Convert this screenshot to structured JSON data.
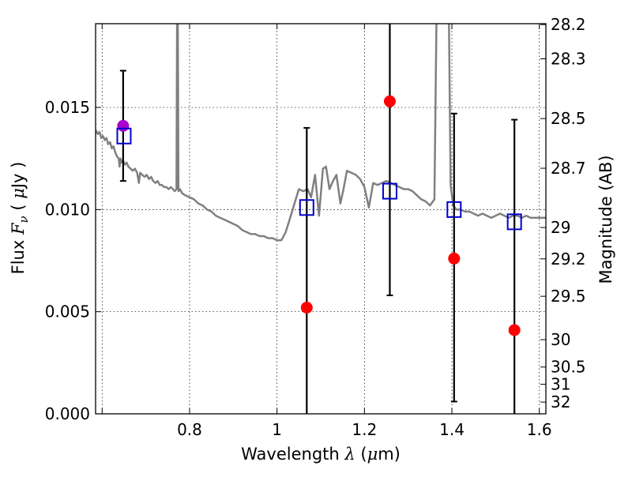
{
  "chart_data": {
    "type": "scatter",
    "xlabel": {
      "prefix": "Wavelength  ",
      "symbol": "λ",
      "unit_open": " (",
      "unit_mu": "μ",
      "unit_rest": "m)"
    },
    "ylabel": {
      "prefix": "Flux  ",
      "symbol": "F",
      "sub": "ν",
      "unit_open": "  ( ",
      "unit_mu": "μ",
      "unit_rest": "Jy )"
    },
    "y2label": "Magnitude (AB)",
    "xlim": [
      0.585,
      1.615
    ],
    "ylim": [
      0.0,
      0.0191
    ],
    "xticks": [
      0.6,
      0.8,
      1.0,
      1.2,
      1.4,
      1.6
    ],
    "xtick_labels": [
      "",
      "0.8",
      "1",
      "1.2",
      "1.4",
      "1.6"
    ],
    "yticks": [
      0.0,
      0.005,
      0.01,
      0.015
    ],
    "ytick_labels": [
      "0.000",
      "0.005",
      "0.010",
      "0.015"
    ],
    "mag_ticks": [
      28.2,
      28.3,
      28.5,
      28.7,
      29,
      29.2,
      29.5,
      30,
      30.5,
      31,
      32
    ],
    "mag_tick_labels": [
      "28.2",
      "28.3",
      "28.5",
      "28.7",
      "29",
      "29.2",
      "29.5",
      "30",
      "30.5",
      "31",
      "32"
    ],
    "grid": true,
    "observed": [
      {
        "x": 0.648,
        "y": 0.0141,
        "err_lo": 0.0114,
        "err_hi": 0.0168,
        "color": "#aa00cc"
      },
      {
        "x": 1.068,
        "y": 0.0052,
        "err_lo": 0.0,
        "err_hi": 0.014,
        "color": "#ff0000"
      },
      {
        "x": 1.258,
        "y": 0.0153,
        "err_lo": 0.0058,
        "err_hi": 0.0191,
        "color": "#ff0000"
      },
      {
        "x": 1.405,
        "y": 0.0076,
        "err_lo": 0.0006,
        "err_hi": 0.0147,
        "color": "#ff0000"
      },
      {
        "x": 1.543,
        "y": 0.0041,
        "err_lo": 0.0,
        "err_hi": 0.0144,
        "color": "#ff0000"
      }
    ],
    "model_photometry": [
      {
        "x": 0.65,
        "y": 0.0136
      },
      {
        "x": 1.068,
        "y": 0.0101
      },
      {
        "x": 1.258,
        "y": 0.0109
      },
      {
        "x": 1.405,
        "y": 0.01
      },
      {
        "x": 1.543,
        "y": 0.0094
      }
    ],
    "sed_color": "#808080",
    "model_color": "#0000cc",
    "sed": [
      [
        0.585,
        0.0139
      ],
      [
        0.59,
        0.0137
      ],
      [
        0.594,
        0.0138
      ],
      [
        0.598,
        0.0135
      ],
      [
        0.602,
        0.0136
      ],
      [
        0.606,
        0.0134
      ],
      [
        0.61,
        0.0135
      ],
      [
        0.614,
        0.0132
      ],
      [
        0.618,
        0.0133
      ],
      [
        0.622,
        0.013
      ],
      [
        0.626,
        0.0131
      ],
      [
        0.63,
        0.0128
      ],
      [
        0.634,
        0.0126
      ],
      [
        0.638,
        0.0125
      ],
      [
        0.64,
        0.0121
      ],
      [
        0.642,
        0.0125
      ],
      [
        0.645,
        0.0123
      ],
      [
        0.648,
        0.0124
      ],
      [
        0.652,
        0.0122
      ],
      [
        0.656,
        0.0123
      ],
      [
        0.66,
        0.0121
      ],
      [
        0.665,
        0.012
      ],
      [
        0.67,
        0.0119
      ],
      [
        0.675,
        0.012
      ],
      [
        0.68,
        0.0118
      ],
      [
        0.684,
        0.0113
      ],
      [
        0.687,
        0.0118
      ],
      [
        0.692,
        0.0117
      ],
      [
        0.697,
        0.0116
      ],
      [
        0.702,
        0.0117
      ],
      [
        0.707,
        0.0115
      ],
      [
        0.712,
        0.0116
      ],
      [
        0.717,
        0.0114
      ],
      [
        0.722,
        0.0113
      ],
      [
        0.727,
        0.0114
      ],
      [
        0.732,
        0.0112
      ],
      [
        0.737,
        0.0112
      ],
      [
        0.742,
        0.0111
      ],
      [
        0.747,
        0.0111
      ],
      [
        0.752,
        0.011
      ],
      [
        0.757,
        0.0111
      ],
      [
        0.762,
        0.011
      ],
      [
        0.766,
        0.0109
      ],
      [
        0.77,
        0.011
      ],
      [
        0.7715,
        0.02
      ],
      [
        0.773,
        0.02
      ],
      [
        0.7745,
        0.0109
      ],
      [
        0.778,
        0.011
      ],
      [
        0.783,
        0.0108
      ],
      [
        0.79,
        0.0107
      ],
      [
        0.8,
        0.0106
      ],
      [
        0.81,
        0.0105
      ],
      [
        0.82,
        0.0103
      ],
      [
        0.83,
        0.0102
      ],
      [
        0.84,
        0.01
      ],
      [
        0.85,
        0.0099
      ],
      [
        0.86,
        0.0097
      ],
      [
        0.87,
        0.0096
      ],
      [
        0.88,
        0.0095
      ],
      [
        0.89,
        0.0094
      ],
      [
        0.9,
        0.0093
      ],
      [
        0.91,
        0.0092
      ],
      [
        0.92,
        0.009
      ],
      [
        0.93,
        0.0089
      ],
      [
        0.94,
        0.0088
      ],
      [
        0.95,
        0.0088
      ],
      [
        0.96,
        0.0087
      ],
      [
        0.97,
        0.0087
      ],
      [
        0.98,
        0.0086
      ],
      [
        0.99,
        0.0086
      ],
      [
        1.0,
        0.0085
      ],
      [
        1.01,
        0.0085
      ],
      [
        1.02,
        0.0089
      ],
      [
        1.03,
        0.0096
      ],
      [
        1.04,
        0.0103
      ],
      [
        1.05,
        0.011
      ],
      [
        1.06,
        0.0109
      ],
      [
        1.07,
        0.011
      ],
      [
        1.078,
        0.0106
      ],
      [
        1.087,
        0.0117
      ],
      [
        1.096,
        0.0097
      ],
      [
        1.105,
        0.012
      ],
      [
        1.112,
        0.0121
      ],
      [
        1.12,
        0.011
      ],
      [
        1.128,
        0.0114
      ],
      [
        1.136,
        0.0117
      ],
      [
        1.145,
        0.0103
      ],
      [
        1.152,
        0.011
      ],
      [
        1.16,
        0.0119
      ],
      [
        1.17,
        0.0118
      ],
      [
        1.18,
        0.0117
      ],
      [
        1.19,
        0.0115
      ],
      [
        1.2,
        0.0111
      ],
      [
        1.21,
        0.0101
      ],
      [
        1.22,
        0.0113
      ],
      [
        1.23,
        0.0112
      ],
      [
        1.24,
        0.0113
      ],
      [
        1.25,
        0.0114
      ],
      [
        1.26,
        0.0113
      ],
      [
        1.27,
        0.0112
      ],
      [
        1.28,
        0.0111
      ],
      [
        1.29,
        0.011
      ],
      [
        1.3,
        0.011
      ],
      [
        1.31,
        0.0109
      ],
      [
        1.32,
        0.0107
      ],
      [
        1.33,
        0.0105
      ],
      [
        1.34,
        0.0104
      ],
      [
        1.35,
        0.0102
      ],
      [
        1.36,
        0.0105
      ],
      [
        1.365,
        0.02
      ],
      [
        1.393,
        0.02
      ],
      [
        1.397,
        0.0112
      ],
      [
        1.403,
        0.0102
      ],
      [
        1.41,
        0.01
      ],
      [
        1.42,
        0.01
      ],
      [
        1.43,
        0.0099
      ],
      [
        1.44,
        0.0099
      ],
      [
        1.45,
        0.0098
      ],
      [
        1.46,
        0.0097
      ],
      [
        1.47,
        0.0098
      ],
      [
        1.48,
        0.0097
      ],
      [
        1.49,
        0.0096
      ],
      [
        1.5,
        0.0097
      ],
      [
        1.51,
        0.0098
      ],
      [
        1.52,
        0.0097
      ],
      [
        1.53,
        0.0096
      ],
      [
        1.54,
        0.0097
      ],
      [
        1.55,
        0.0097
      ],
      [
        1.56,
        0.0096
      ],
      [
        1.57,
        0.0097
      ],
      [
        1.58,
        0.0096
      ],
      [
        1.59,
        0.0096
      ],
      [
        1.6,
        0.0096
      ],
      [
        1.615,
        0.0096
      ]
    ]
  }
}
